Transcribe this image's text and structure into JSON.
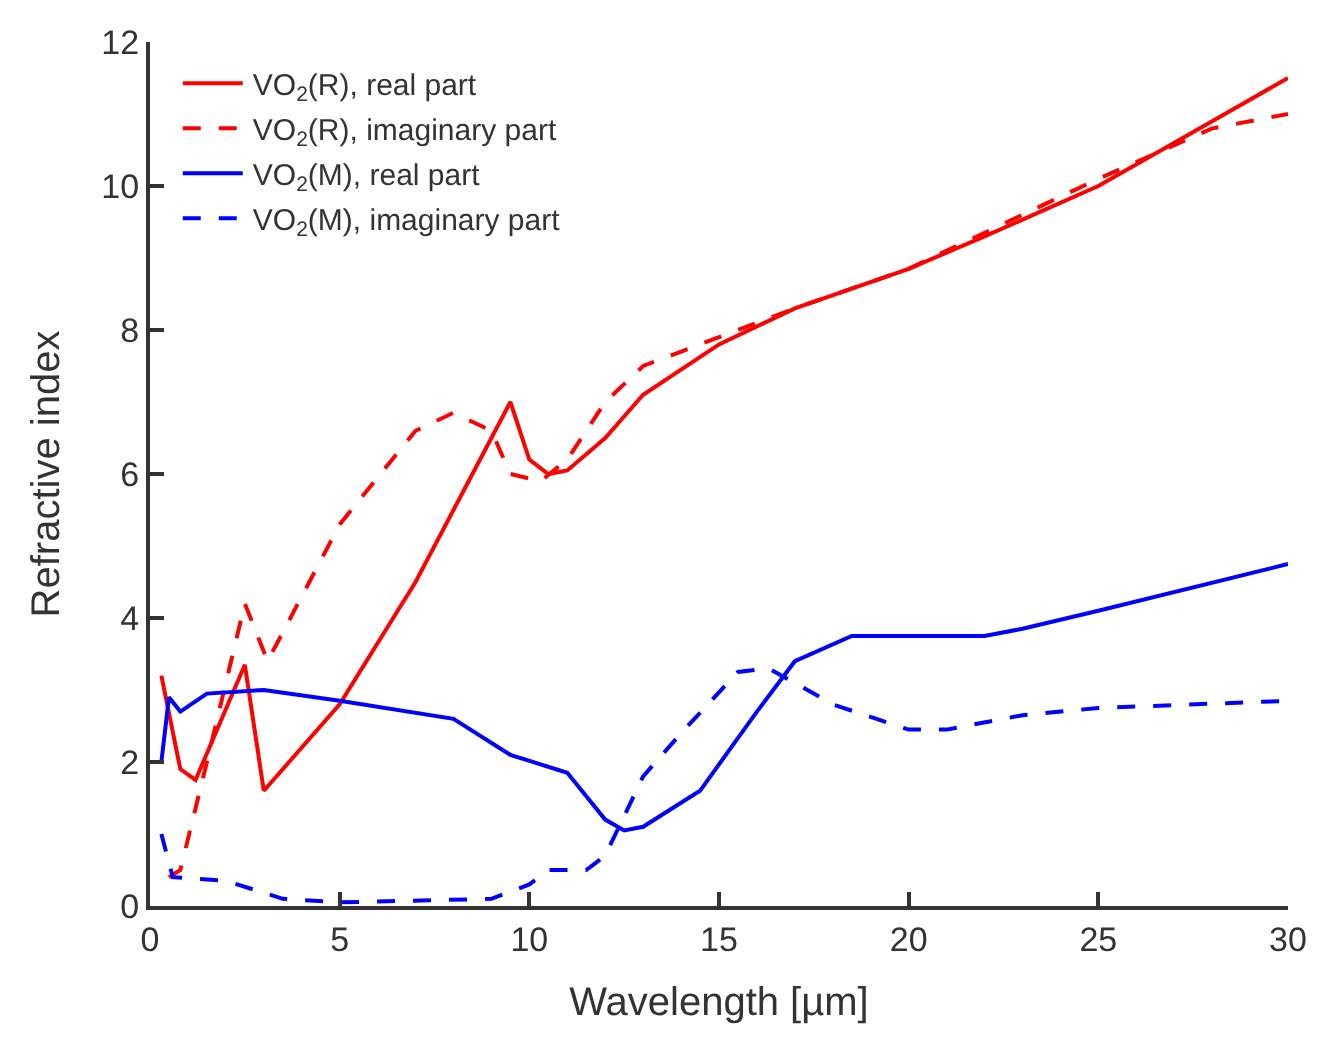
{
  "chart_data": {
    "type": "line",
    "xlabel": "Wavelength [µm]",
    "ylabel": "Refractive index",
    "xlim": [
      0,
      30
    ],
    "xticks": [
      0,
      5,
      10,
      15,
      20,
      25,
      30
    ],
    "ylim": [
      0,
      12
    ],
    "yticks": [
      0,
      2,
      4,
      6,
      8,
      10,
      12
    ],
    "legend": "top left",
    "marker": "none",
    "series": [
      {
        "name": "VO$_{2}$(R), real part",
        "color": "#ff0000",
        "line_style": "solid",
        "x": [
          0.3,
          0.8,
          1.2,
          2.5,
          3.0,
          5,
          7,
          8.5,
          9.5,
          10,
          10.5,
          11,
          12,
          13,
          15,
          17,
          20,
          22,
          25,
          28,
          30
        ],
        "values": [
          3.2,
          1.9,
          1.75,
          3.35,
          1.6,
          2.8,
          4.5,
          6.0,
          7.0,
          6.2,
          6.0,
          6.05,
          6.5,
          7.1,
          7.8,
          8.3,
          8.85,
          9.3,
          10.0,
          10.9,
          11.5
        ]
      },
      {
        "name": "VO$_{2}$(R), imaginary part",
        "color": "#ff0000",
        "line_style": "dashed",
        "x": [
          0.5,
          0.8,
          1.5,
          2.5,
          3.1,
          5,
          7,
          8,
          9,
          9.5,
          10.3,
          11,
          12,
          13,
          15,
          17,
          20,
          25,
          28,
          30
        ],
        "values": [
          0.4,
          0.5,
          2.0,
          4.2,
          3.4,
          5.3,
          6.6,
          6.85,
          6.6,
          6.0,
          5.9,
          6.2,
          7.0,
          7.5,
          7.9,
          8.3,
          8.85,
          10.1,
          10.8,
          11.0
        ]
      },
      {
        "name": "VO$_{2}$(M), real part",
        "color": "#0000ff",
        "line_style": "solid",
        "x": [
          0.3,
          0.5,
          0.8,
          1.5,
          3,
          5,
          8,
          9.5,
          11,
          12,
          12.5,
          13,
          14.5,
          16,
          17,
          18.5,
          20,
          22,
          23,
          25,
          30
        ],
        "values": [
          2.0,
          2.9,
          2.7,
          2.95,
          3.0,
          2.85,
          2.6,
          2.1,
          1.85,
          1.2,
          1.05,
          1.1,
          1.6,
          2.7,
          3.4,
          3.75,
          3.75,
          3.75,
          3.85,
          4.1,
          4.75
        ]
      },
      {
        "name": "VO$_{2}$(M), imaginary part",
        "color": "#0000ff",
        "line_style": "dashed",
        "x": [
          0.3,
          0.6,
          2,
          3.5,
          5,
          9,
          10,
          10.5,
          11.5,
          12,
          13,
          14,
          15.5,
          16.3,
          17,
          18,
          20,
          21,
          23,
          25,
          30
        ],
        "values": [
          1.0,
          0.4,
          0.35,
          0.1,
          0.05,
          0.1,
          0.3,
          0.5,
          0.5,
          0.7,
          1.8,
          2.4,
          3.25,
          3.3,
          3.1,
          2.8,
          2.45,
          2.45,
          2.65,
          2.75,
          2.85
        ]
      }
    ]
  }
}
